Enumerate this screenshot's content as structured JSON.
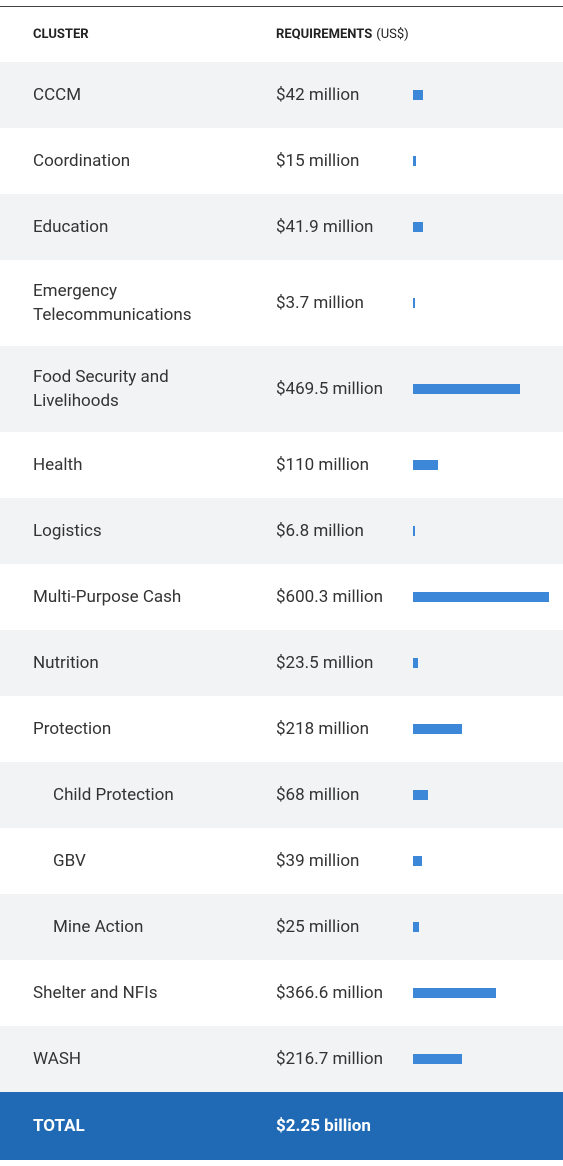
{
  "header": {
    "cluster": "CLUSTER",
    "requirements": "REQUIREMENTS",
    "unit": "(US$)"
  },
  "bar_color": "#3d87d9",
  "rows": [
    {
      "label": "CCCM",
      "value": 42,
      "value_label": "$42 million"
    },
    {
      "label": "Coordination",
      "value": 15,
      "value_label": "$15 million"
    },
    {
      "label": "Education",
      "value": 41.9,
      "value_label": "$41.9 million"
    },
    {
      "label": "Emergency Telecommunications",
      "value": 3.7,
      "value_label": "$3.7 million"
    },
    {
      "label": "Food Security and Livelihoods",
      "value": 469.5,
      "value_label": "$469.5 million"
    },
    {
      "label": "Health",
      "value": 110,
      "value_label": "$110 million"
    },
    {
      "label": "Logistics",
      "value": 6.8,
      "value_label": "$6.8 million"
    },
    {
      "label": "Multi-Purpose Cash",
      "value": 600.3,
      "value_label": "$600.3 million"
    },
    {
      "label": "Nutrition",
      "value": 23.5,
      "value_label": "$23.5 million"
    },
    {
      "label": "Protection",
      "value": 218,
      "value_label": "$218 million"
    },
    {
      "label": "Child Protection",
      "value": 68,
      "value_label": "$68 million",
      "sub": true
    },
    {
      "label": "GBV",
      "value": 39,
      "value_label": "$39 million",
      "sub": true
    },
    {
      "label": "Mine Action",
      "value": 25,
      "value_label": "$25 million",
      "sub": true
    },
    {
      "label": "Shelter and NFIs",
      "value": 366.6,
      "value_label": "$366.6 million"
    },
    {
      "label": "WASH",
      "value": 216.7,
      "value_label": "$216.7 million"
    }
  ],
  "total": {
    "label": "TOTAL",
    "value_label": "$2.25 billion"
  }
}
